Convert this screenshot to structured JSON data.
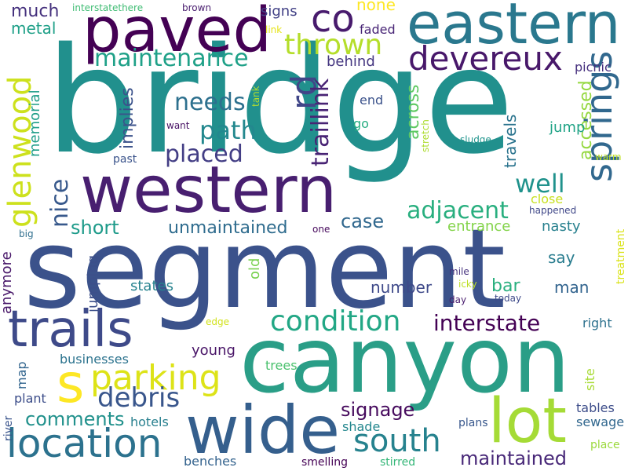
{
  "words": [
    {
      "text": "bridge",
      "color": "#21908d"
    },
    {
      "text": "segment",
      "color": "#3b528b"
    },
    {
      "text": "canyon",
      "color": "#2a9e87"
    },
    {
      "text": "western",
      "color": "#481f70"
    },
    {
      "text": "paved",
      "color": "#440154"
    },
    {
      "text": "eastern",
      "color": "#2a788e"
    },
    {
      "text": "wide",
      "color": "#355f8d"
    },
    {
      "text": "trails",
      "color": "#3e4a89"
    },
    {
      "text": "lot",
      "color": "#a5db36"
    },
    {
      "text": "location",
      "color": "#2c728e"
    },
    {
      "text": "springs",
      "color": "#31688e"
    },
    {
      "text": "glenwood",
      "color": "#cde11d"
    },
    {
      "text": "devereux",
      "color": "#48186a"
    },
    {
      "text": "parking",
      "color": "#dde318"
    },
    {
      "text": "s",
      "color": "#fde725"
    },
    {
      "text": "south",
      "color": "#26828e"
    },
    {
      "text": "co",
      "color": "#481b6d"
    },
    {
      "text": "rd",
      "color": "#404688"
    },
    {
      "text": "thrown",
      "color": "#b5de2b"
    },
    {
      "text": "condition",
      "color": "#22a785"
    },
    {
      "text": "interstate",
      "color": "#440154"
    },
    {
      "text": "debris",
      "color": "#39568c"
    },
    {
      "text": "maintenance",
      "color": "#1fa188"
    },
    {
      "text": "path",
      "color": "#23888e"
    },
    {
      "text": "adjacent",
      "color": "#29af7f"
    },
    {
      "text": "needs",
      "color": "#2d708e"
    },
    {
      "text": "placed",
      "color": "#433e85"
    },
    {
      "text": "well",
      "color": "#20928c"
    },
    {
      "text": "traillink",
      "color": "#482374"
    },
    {
      "text": "nice",
      "color": "#38598c"
    },
    {
      "text": "comments",
      "color": "#21918c"
    },
    {
      "text": "signage",
      "color": "#460a5d"
    },
    {
      "text": "maintained",
      "color": "#482878"
    },
    {
      "text": "unmaintained",
      "color": "#2f6c8e"
    },
    {
      "text": "short",
      "color": "#1e9b8a"
    },
    {
      "text": "case",
      "color": "#31688e"
    },
    {
      "text": "across",
      "color": "#5ec962"
    },
    {
      "text": "accessed",
      "color": "#95d840"
    },
    {
      "text": "much",
      "color": "#46327e"
    },
    {
      "text": "metal",
      "color": "#1fa088"
    },
    {
      "text": "memorial",
      "color": "#1f9e89"
    },
    {
      "text": "implies",
      "color": "#3b528b"
    },
    {
      "text": "travels",
      "color": "#2b748e"
    },
    {
      "text": "jump",
      "color": "#20a386"
    },
    {
      "text": "none",
      "color": "#fde725"
    },
    {
      "text": "signs",
      "color": "#424186"
    },
    {
      "text": "faded",
      "color": "#482576"
    },
    {
      "text": "behind",
      "color": "#453781"
    },
    {
      "text": "picnic",
      "color": "#46307e"
    },
    {
      "text": "end",
      "color": "#3b528b"
    },
    {
      "text": "go",
      "color": "#27ad81"
    },
    {
      "text": "close",
      "color": "#c8e020"
    },
    {
      "text": "entrance",
      "color": "#84d44b"
    },
    {
      "text": "nasty",
      "color": "#27808e"
    },
    {
      "text": "say",
      "color": "#287c8e"
    },
    {
      "text": "bar",
      "color": "#2ab07f"
    },
    {
      "text": "number",
      "color": "#3e4989"
    },
    {
      "text": "man",
      "color": "#32648e"
    },
    {
      "text": "states",
      "color": "#26828e"
    },
    {
      "text": "old",
      "color": "#7ad151"
    },
    {
      "text": "jumping",
      "color": "#3c4f8a"
    },
    {
      "text": "anymore",
      "color": "#481769"
    },
    {
      "text": "young",
      "color": "#481467"
    },
    {
      "text": "right",
      "color": "#2d718e"
    },
    {
      "text": "trees",
      "color": "#4ac16d"
    },
    {
      "text": "businesses",
      "color": "#2c738e"
    },
    {
      "text": "map",
      "color": "#32658e"
    },
    {
      "text": "plant",
      "color": "#3d4e8a"
    },
    {
      "text": "river",
      "color": "#3a548c"
    },
    {
      "text": "hotels",
      "color": "#277f8e"
    },
    {
      "text": "shade",
      "color": "#24878e"
    },
    {
      "text": "plans",
      "color": "#38578c"
    },
    {
      "text": "tables",
      "color": "#3d4d8a"
    },
    {
      "text": "sewage",
      "color": "#31678e"
    },
    {
      "text": "site",
      "color": "#a8db34"
    },
    {
      "text": "treatment",
      "color": "#dae319"
    },
    {
      "text": "benches",
      "color": "#33628d"
    },
    {
      "text": "smelling",
      "color": "#440154"
    },
    {
      "text": "stirred",
      "color": "#35b779"
    },
    {
      "text": "place",
      "color": "#9bd93c"
    },
    {
      "text": "today",
      "color": "#3e4a89"
    },
    {
      "text": "day",
      "color": "#481c6e"
    },
    {
      "text": "icky",
      "color": "#bddf26"
    },
    {
      "text": "mile",
      "color": "#46327e"
    },
    {
      "text": "edge",
      "color": "#d2e21b"
    },
    {
      "text": "one",
      "color": "#46085c"
    },
    {
      "text": "big",
      "color": "#2e6e8e"
    },
    {
      "text": "past",
      "color": "#3a538b"
    },
    {
      "text": "want",
      "color": "#471164"
    },
    {
      "text": "tank",
      "color": "#b2dd2d"
    },
    {
      "text": "stretch",
      "color": "#addc30"
    },
    {
      "text": "sludge",
      "color": "#1f948c"
    },
    {
      "text": "warm",
      "color": "#c0df25"
    },
    {
      "text": "happened",
      "color": "#3f4788"
    },
    {
      "text": "interstatethere",
      "color": "#3fbc73"
    },
    {
      "text": "brown",
      "color": "#481c6e"
    },
    {
      "text": "link",
      "color": "#e5e419"
    }
  ]
}
